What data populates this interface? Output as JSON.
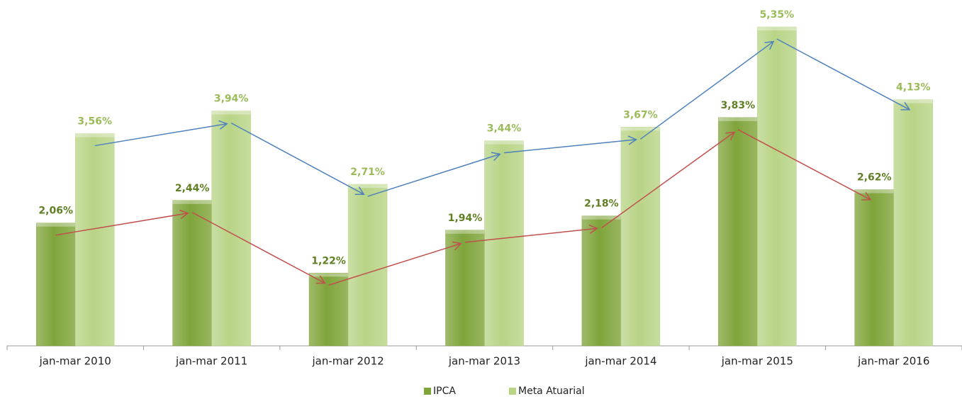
{
  "chart_data": {
    "type": "bar",
    "categories": [
      "jan-mar 2010",
      "jan-mar 2011",
      "jan-mar 2012",
      "jan-mar 2013",
      "jan-mar 2014",
      "jan-mar 2015",
      "jan-mar 2016"
    ],
    "series": [
      {
        "name": "IPCA",
        "color": "#7fa43a",
        "label_color": "#5f7f22",
        "arrow_color": "#c0504d",
        "values": [
          2.06,
          2.44,
          1.22,
          1.94,
          2.18,
          3.83,
          2.62
        ],
        "value_labels": [
          "2,06%",
          "2,44%",
          "1,22%",
          "1,94%",
          "2,18%",
          "3,83%",
          "2,62%"
        ]
      },
      {
        "name": "Meta Atuarial",
        "color": "#b8d486",
        "label_color": "#9bbb59",
        "arrow_color": "#4f81bd",
        "values": [
          3.56,
          3.94,
          2.71,
          3.44,
          3.67,
          5.35,
          4.13
        ],
        "value_labels": [
          "3,56%",
          "3,94%",
          "2,71%",
          "3,44%",
          "3,67%",
          "5,35%",
          "4,13%"
        ]
      }
    ],
    "legend": "bottom"
  }
}
